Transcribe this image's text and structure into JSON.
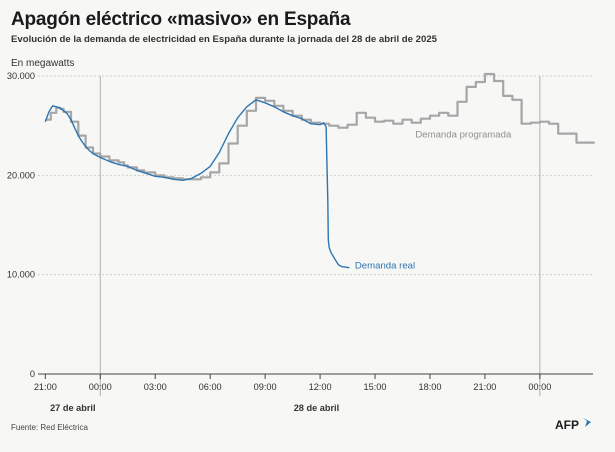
{
  "title": "Apagón eléctrico «masivo» en España",
  "subtitle": "Evolución de la demanda de electricidad en España durante la jornada del 28 de abril de 2025",
  "unit_label": "En megawatts",
  "source": "Fuente: Red Eléctrica",
  "logo": "AFP",
  "colors": {
    "programada": "#a6a6a6",
    "real": "#2f75b0",
    "grid": "#cfcfcf",
    "axis": "#444444"
  },
  "chart_data": {
    "type": "line",
    "title": "Apagón eléctrico «masivo» en España",
    "ylabel": "En megawatts",
    "xlabel": "",
    "ylim": [
      0,
      30000
    ],
    "xlim": [
      -3.4,
      26.9
    ],
    "y_ticks": [
      0,
      10000,
      20000,
      30000
    ],
    "y_tick_labels": [
      "0",
      "10.000",
      "20.000",
      "30.000"
    ],
    "x_ticks": [
      -3,
      0,
      3,
      6,
      9,
      12,
      15,
      18,
      21,
      24
    ],
    "x_tick_labels": [
      "21:00",
      "00:00",
      "03:00",
      "06:00",
      "09:00",
      "12:00",
      "15:00",
      "18:00",
      "21:00",
      "00:00"
    ],
    "date_labels": [
      {
        "x": -1.5,
        "text": "27 de abril"
      },
      {
        "x": 11.8,
        "text": "28 de abril"
      }
    ],
    "day_separators": [
      0,
      24
    ],
    "grid": true,
    "legend": "inline labels",
    "series": [
      {
        "name": "Demanda programada",
        "step": true,
        "x": [
          -3.0,
          -2.7,
          -2.4,
          -2.2,
          -2.0,
          -1.6,
          -1.2,
          -0.8,
          -0.4,
          0,
          0.5,
          1,
          1.3,
          1.5,
          2.0,
          2.4,
          3.0,
          3.5,
          4.0,
          4.5,
          5.0,
          5.5,
          6.0,
          6.5,
          7.0,
          7.5,
          8.0,
          8.5,
          9.0,
          9.5,
          10.0,
          10.5,
          11.0,
          11.5,
          12.0,
          12.5,
          13.0,
          13.5,
          14.0,
          14.5,
          15.0,
          15.5,
          16.0,
          16.5,
          17.0,
          17.5,
          18.0,
          18.5,
          19.0,
          19.5,
          20.0,
          20.5,
          21.0,
          21.5,
          22.0,
          22.5,
          23.0,
          23.5,
          24.0,
          24.5,
          25.0,
          25.5,
          26.0,
          26.5,
          27.0
        ],
        "y": [
          25600,
          26300,
          26800,
          26700,
          26400,
          25400,
          24000,
          22800,
          22200,
          21900,
          21500,
          21300,
          21000,
          20800,
          20500,
          20300,
          20000,
          19800,
          19700,
          19600,
          19600,
          19800,
          20300,
          21200,
          23200,
          25000,
          26500,
          27800,
          27500,
          27000,
          26500,
          26000,
          25600,
          25300,
          25200,
          25000,
          24800,
          25100,
          26300,
          25800,
          25400,
          25500,
          25200,
          25600,
          25300,
          25700,
          26000,
          26300,
          26000,
          27400,
          28900,
          29400,
          30200,
          29500,
          28000,
          27600,
          25200,
          25300,
          25400,
          25200,
          24200,
          24200,
          23300,
          23300,
          23300
        ]
      },
      {
        "name": "Demanda real",
        "step": false,
        "x": [
          -3.0,
          -2.8,
          -2.6,
          -2.4,
          -2.2,
          -2.0,
          -1.8,
          -1.6,
          -1.4,
          -1.2,
          -1.0,
          -0.8,
          -0.6,
          -0.4,
          -0.2,
          0,
          0.5,
          1.0,
          1.5,
          2.0,
          2.5,
          3.0,
          3.5,
          4.0,
          4.5,
          5.0,
          5.5,
          6.0,
          6.5,
          7.0,
          7.5,
          8.0,
          8.5,
          9.0,
          9.5,
          10.0,
          10.5,
          11.0,
          11.5,
          12.0,
          12.2,
          12.33,
          12.42,
          12.45,
          12.5,
          12.6,
          12.8,
          13.0,
          13.2,
          13.6
        ],
        "y": [
          25400,
          26400,
          27000,
          26900,
          26800,
          26500,
          26200,
          25600,
          24800,
          24000,
          23400,
          22900,
          22500,
          22200,
          22000,
          21800,
          21400,
          21100,
          20900,
          20500,
          20200,
          19900,
          19800,
          19600,
          19500,
          19700,
          20200,
          20900,
          22300,
          24200,
          25800,
          26900,
          27600,
          27300,
          26900,
          26400,
          26000,
          25700,
          25200,
          25100,
          25300,
          24900,
          17500,
          13500,
          12700,
          12200,
          11600,
          11000,
          10800,
          10700
        ]
      }
    ],
    "annotations": [
      {
        "text": "Demanda programada",
        "series": "Demanda programada"
      },
      {
        "text": "Demanda real",
        "series": "Demanda real"
      }
    ]
  }
}
